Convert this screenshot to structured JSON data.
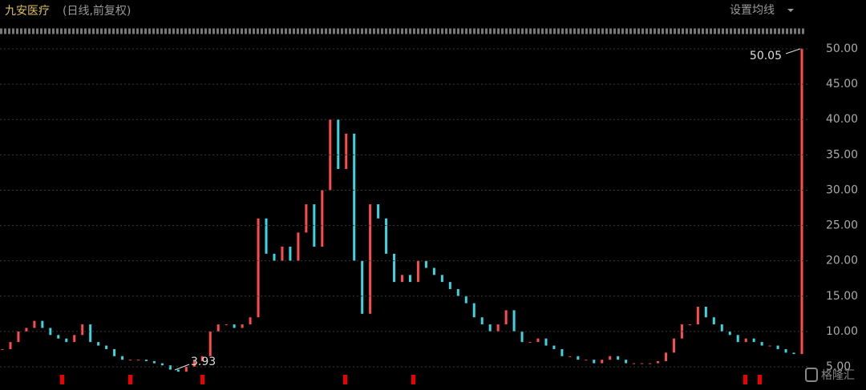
{
  "chart_data": {
    "type": "candles",
    "title": "九安医疗",
    "subtitle": "(日线,前复权)",
    "menu": "设置均线",
    "annotations": [
      "50.05",
      "3.93"
    ],
    "watermark": "格隆汇",
    "up_color": "#ff4b4b",
    "down_color": "#38d6e0",
    "values": [
      7.5,
      8.5,
      10,
      10.5,
      11.5,
      10.5,
      9.5,
      9,
      8.5,
      9.5,
      11,
      8.5,
      8,
      7.5,
      6.5,
      6,
      6,
      6,
      5.8,
      5.5,
      5.2,
      4.6,
      4.3,
      5,
      5.8,
      6.5,
      10,
      11,
      11,
      10.5,
      11,
      12,
      26,
      21,
      20,
      22,
      20,
      24,
      28,
      22,
      30,
      40,
      33,
      38,
      20,
      12.5,
      28,
      26,
      21,
      17,
      18,
      17,
      20,
      19,
      18,
      17,
      16,
      15,
      14,
      12,
      11,
      10,
      11,
      13,
      10,
      8.5,
      8.5,
      9,
      8,
      7.5,
      6.5,
      6.5,
      6,
      6,
      5.5,
      6,
      6.5,
      6,
      5.5,
      5.5,
      5.5,
      5.5,
      5.8,
      7,
      9,
      11,
      11,
      13.5,
      12,
      11,
      10,
      9.5,
      8.5,
      9,
      8.5,
      8,
      8,
      7.5,
      7,
      6.8,
      50.05
    ],
    "ylim": [
      3.64,
      51.25
    ],
    "yticks": [
      {
        "value": 5,
        "label": "5.00"
      },
      {
        "value": 10,
        "label": "10.00"
      },
      {
        "value": 15,
        "label": "15.00"
      },
      {
        "value": 20,
        "label": "20.00"
      },
      {
        "value": 25,
        "label": "25.00"
      },
      {
        "value": 30,
        "label": "30.00"
      },
      {
        "value": 35,
        "label": "35.00"
      },
      {
        "value": 40,
        "label": "40.00"
      },
      {
        "value": 45,
        "label": "45.00"
      },
      {
        "value": 50,
        "label": "50.00"
      }
    ],
    "grid": true
  }
}
